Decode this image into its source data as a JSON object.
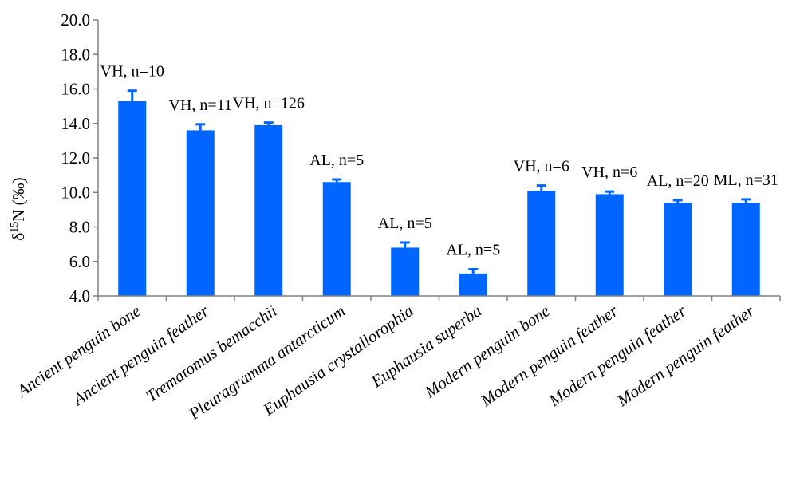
{
  "colors": {
    "bar": "#0066ff",
    "axis": "#808080"
  },
  "chart_data": {
    "type": "bar",
    "title": "",
    "xlabel": "",
    "ylabel": {
      "prefix": "δ",
      "superscript": "15",
      "suffix": "N (‰)"
    },
    "ylim": [
      4.0,
      20.0
    ],
    "yticks": [
      "4.0",
      "6.0",
      "8.0",
      "10.0",
      "12.0",
      "14.0",
      "16.0",
      "18.0",
      "20.0"
    ],
    "grid": false,
    "legend": "none",
    "categories": [
      "Ancient penguin bone",
      "Ancient penguin feather",
      "Trematomus bemacchii",
      "Pleuragramma antarcticum",
      "Euphausia crystallorophia",
      "Euphausia superba",
      "Modern penguin bone",
      "Modern penguin feather",
      "Modern penguin feather",
      "Modern penguin feather"
    ],
    "values": [
      15.3,
      13.6,
      13.9,
      10.6,
      6.8,
      5.3,
      10.1,
      9.9,
      9.4,
      9.4
    ],
    "error_upper": [
      0.6,
      0.35,
      0.15,
      0.15,
      0.3,
      0.25,
      0.3,
      0.15,
      0.15,
      0.2
    ],
    "data_labels": [
      "VH, n=10",
      "VH, n=11",
      "VH, n=126",
      "AL, n=5",
      "AL, n=5",
      "AL, n=5",
      "VH, n=6",
      "VH, n=6",
      "AL, n=20",
      "ML, n=31"
    ]
  }
}
